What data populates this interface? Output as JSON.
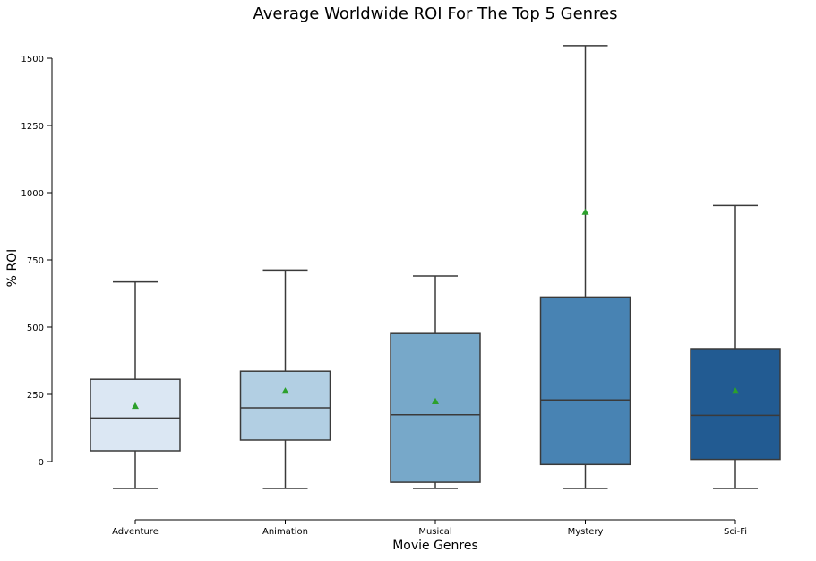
{
  "chart_data": {
    "type": "box",
    "title": "Average Worldwide ROI For The Top 5 Genres",
    "xlabel": "Movie Genres",
    "ylabel": "% ROI",
    "ylim": [
      -210,
      1560
    ],
    "y_ticks": [
      0,
      250,
      500,
      750,
      1000,
      1250,
      1500
    ],
    "y_tick_labels": [
      "0",
      "250",
      "500",
      "750",
      "1000",
      "1250",
      "1500"
    ],
    "categories": [
      "Adventure",
      "Animation",
      "Musical",
      "Mystery",
      "Sci-Fi"
    ],
    "boxes": [
      {
        "category": "Adventure",
        "whisker_low": -100,
        "q1": 40,
        "median": 162,
        "q3": 306,
        "whisker_high": 668,
        "mean": 207,
        "color": "#dbe7f3"
      },
      {
        "category": "Animation",
        "whisker_low": -100,
        "q1": 80,
        "median": 200,
        "q3": 336,
        "whisker_high": 712,
        "mean": 263,
        "color": "#b2cfe3"
      },
      {
        "category": "Musical",
        "whisker_low": -100,
        "q1": -77,
        "median": 174,
        "q3": 476,
        "whisker_high": 690,
        "mean": 224,
        "color": "#77a8c9"
      },
      {
        "category": "Mystery",
        "whisker_low": -100,
        "q1": -11,
        "median": 229,
        "q3": 612,
        "whisker_high": 1547,
        "mean": 928,
        "color": "#4883b3"
      },
      {
        "category": "Sci-Fi",
        "whisker_low": -100,
        "q1": 8,
        "median": 172,
        "q3": 420,
        "whisker_high": 952,
        "mean": 263,
        "color": "#225b92"
      }
    ],
    "mean_marker_color": "#2ca02c",
    "grid": false,
    "legend": "none"
  }
}
